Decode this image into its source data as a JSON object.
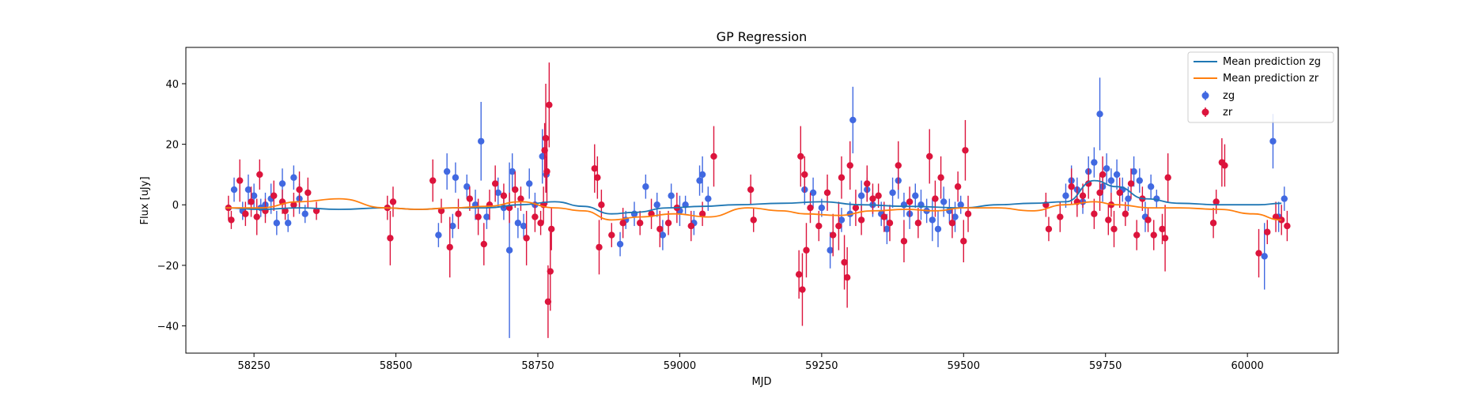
{
  "chart_data": {
    "type": "scatter",
    "title": "GP Regression",
    "xlabel": "MJD",
    "ylabel": "Flux [uJy]",
    "xlim": [
      58130,
      60160
    ],
    "ylim": [
      -49,
      52
    ],
    "xticks": [
      58250,
      58500,
      58750,
      59000,
      59250,
      59500,
      59750,
      60000
    ],
    "yticks": [
      -40,
      -20,
      0,
      20,
      40
    ],
    "grid": false,
    "legend_position": "top-right",
    "colors": {
      "mean_zg": "#1f77b4",
      "mean_zr": "#ff7f0e",
      "zg": "#4169e1",
      "zr": "#dc143c"
    },
    "series": [
      {
        "name": "Mean prediction zg",
        "kind": "line",
        "x": [
          58200,
          58260,
          58330,
          58400,
          58480,
          58540,
          58600,
          58660,
          58720,
          58780,
          58830,
          58880,
          58920,
          58980,
          59040,
          59100,
          59180,
          59250,
          59320,
          59400,
          59500,
          59560,
          59620,
          59680,
          59730,
          59770,
          59820,
          59880,
          59950,
          60020,
          60060
        ],
        "y": [
          -1,
          -1.5,
          -1,
          -1.5,
          -1,
          -1.5,
          -1,
          -1,
          0,
          1,
          -0.5,
          -3,
          -2.5,
          -1,
          -0.5,
          0,
          0.5,
          1,
          0,
          -0.5,
          -1,
          0,
          0.5,
          1,
          8,
          6,
          2,
          0.5,
          0,
          0,
          0.5
        ]
      },
      {
        "name": "Mean prediction zr",
        "kind": "line",
        "x": [
          58200,
          58260,
          58330,
          58400,
          58480,
          58540,
          58600,
          58660,
          58720,
          58780,
          58830,
          58880,
          58930,
          58990,
          59050,
          59120,
          59180,
          59220,
          59280,
          59340,
          59400,
          59450,
          59500,
          59560,
          59620,
          59680,
          59730,
          59770,
          59830,
          59880,
          59950,
          60010,
          60060
        ],
        "y": [
          -1,
          -1,
          1,
          2,
          -1,
          -1.5,
          -1,
          -0.5,
          1,
          -1,
          -2,
          -5,
          -4,
          -3,
          -4,
          -1,
          -2,
          -3,
          -3.5,
          -2,
          -1.5,
          -2,
          -1,
          -1,
          -2,
          0,
          1,
          0,
          -1,
          -1,
          -1.5,
          -3,
          -5
        ]
      },
      {
        "name": "zg",
        "kind": "errorbar",
        "points": [
          [
            58215,
            5,
            4
          ],
          [
            58230,
            -2,
            3
          ],
          [
            58240,
            5,
            5
          ],
          [
            58250,
            3,
            4
          ],
          [
            58262,
            -1,
            3
          ],
          [
            58270,
            0,
            4
          ],
          [
            58280,
            2,
            5
          ],
          [
            58290,
            -6,
            4
          ],
          [
            58300,
            7,
            5
          ],
          [
            58310,
            -6,
            3
          ],
          [
            58320,
            9,
            4
          ],
          [
            58330,
            2,
            5
          ],
          [
            58340,
            -3,
            3
          ],
          [
            58575,
            -10,
            4
          ],
          [
            58590,
            11,
            6
          ],
          [
            58600,
            -7,
            4
          ],
          [
            58605,
            9,
            5
          ],
          [
            58625,
            6,
            4
          ],
          [
            58640,
            0,
            5
          ],
          [
            58650,
            21,
            13
          ],
          [
            58660,
            -4,
            4
          ],
          [
            58680,
            4,
            5
          ],
          [
            58690,
            -1,
            4
          ],
          [
            58700,
            -15,
            29
          ],
          [
            58705,
            11,
            6
          ],
          [
            58715,
            -6,
            5
          ],
          [
            58725,
            -7,
            4
          ],
          [
            58735,
            7,
            5
          ],
          [
            58745,
            0,
            4
          ],
          [
            58758,
            16,
            9
          ],
          [
            58765,
            10,
            6
          ],
          [
            58895,
            -13,
            4
          ],
          [
            58905,
            -5,
            3
          ],
          [
            58920,
            -3,
            4
          ],
          [
            58940,
            6,
            4
          ],
          [
            58960,
            0,
            4
          ],
          [
            58970,
            -10,
            5
          ],
          [
            58985,
            3,
            4
          ],
          [
            59000,
            -2,
            5
          ],
          [
            59010,
            0,
            3
          ],
          [
            59025,
            -6,
            4
          ],
          [
            59035,
            8,
            5
          ],
          [
            59040,
            10,
            6
          ],
          [
            59050,
            2,
            4
          ],
          [
            59220,
            5,
            5
          ],
          [
            59235,
            4,
            5
          ],
          [
            59250,
            -1,
            3
          ],
          [
            59265,
            -15,
            6
          ],
          [
            59285,
            -5,
            4
          ],
          [
            59300,
            -3,
            4
          ],
          [
            59305,
            28,
            11
          ],
          [
            59320,
            3,
            5
          ],
          [
            59330,
            5,
            4
          ],
          [
            59340,
            0,
            4
          ],
          [
            59355,
            -3,
            4
          ],
          [
            59365,
            -8,
            5
          ],
          [
            59375,
            4,
            5
          ],
          [
            59385,
            8,
            6
          ],
          [
            59395,
            0,
            4
          ],
          [
            59405,
            -3,
            5
          ],
          [
            59415,
            3,
            4
          ],
          [
            59425,
            0,
            5
          ],
          [
            59435,
            -2,
            4
          ],
          [
            59445,
            -5,
            7
          ],
          [
            59455,
            -8,
            6
          ],
          [
            59465,
            1,
            5
          ],
          [
            59475,
            -2,
            4
          ],
          [
            59485,
            -4,
            5
          ],
          [
            59495,
            0,
            3
          ],
          [
            59680,
            3,
            4
          ],
          [
            59690,
            8,
            5
          ],
          [
            59700,
            5,
            4
          ],
          [
            59710,
            1,
            4
          ],
          [
            59720,
            11,
            5
          ],
          [
            59730,
            14,
            5
          ],
          [
            59740,
            30,
            12
          ],
          [
            59745,
            6,
            5
          ],
          [
            59752,
            12,
            5
          ],
          [
            59760,
            8,
            4
          ],
          [
            59770,
            10,
            5
          ],
          [
            59780,
            5,
            4
          ],
          [
            59790,
            2,
            4
          ],
          [
            59800,
            11,
            5
          ],
          [
            59810,
            8,
            4
          ],
          [
            59820,
            -4,
            5
          ],
          [
            59830,
            6,
            4
          ],
          [
            59840,
            2,
            3
          ],
          [
            60030,
            -17,
            11
          ],
          [
            60045,
            21,
            9
          ],
          [
            60055,
            -4,
            5
          ],
          [
            60065,
            2,
            4
          ]
        ]
      },
      {
        "name": "zr",
        "kind": "errorbar",
        "points": [
          [
            58205,
            -1,
            4
          ],
          [
            58210,
            -5,
            3
          ],
          [
            58225,
            8,
            7
          ],
          [
            58235,
            -3,
            4
          ],
          [
            58245,
            1,
            5
          ],
          [
            58255,
            -4,
            6
          ],
          [
            58260,
            10,
            5
          ],
          [
            58270,
            -2,
            4
          ],
          [
            58285,
            3,
            5
          ],
          [
            58300,
            1,
            4
          ],
          [
            58305,
            -2,
            3
          ],
          [
            58320,
            0,
            4
          ],
          [
            58330,
            5,
            6
          ],
          [
            58345,
            4,
            5
          ],
          [
            58360,
            -2,
            3
          ],
          [
            58485,
            -1,
            4
          ],
          [
            58490,
            -11,
            9
          ],
          [
            58495,
            1,
            5
          ],
          [
            58565,
            8,
            7
          ],
          [
            58580,
            -2,
            4
          ],
          [
            58595,
            -14,
            10
          ],
          [
            58610,
            -3,
            5
          ],
          [
            58630,
            2,
            4
          ],
          [
            58645,
            -4,
            6
          ],
          [
            58655,
            -13,
            7
          ],
          [
            58665,
            0,
            5
          ],
          [
            58675,
            7,
            6
          ],
          [
            58690,
            3,
            4
          ],
          [
            58700,
            -1,
            5
          ],
          [
            58710,
            5,
            6
          ],
          [
            58720,
            2,
            4
          ],
          [
            58730,
            -11,
            9
          ],
          [
            58745,
            -4,
            5
          ],
          [
            58755,
            -6,
            4
          ],
          [
            58760,
            0,
            6
          ],
          [
            58762,
            18,
            9
          ],
          [
            58764,
            22,
            18
          ],
          [
            58766,
            11,
            11
          ],
          [
            58768,
            -32,
            12
          ],
          [
            58770,
            33,
            14
          ],
          [
            58772,
            -22,
            13
          ],
          [
            58774,
            -8,
            7
          ],
          [
            58850,
            12,
            8
          ],
          [
            58855,
            9,
            7
          ],
          [
            58858,
            -14,
            9
          ],
          [
            58862,
            0,
            5
          ],
          [
            58880,
            -10,
            4
          ],
          [
            58900,
            -6,
            5
          ],
          [
            58930,
            -6,
            4
          ],
          [
            58950,
            -3,
            5
          ],
          [
            58965,
            -8,
            6
          ],
          [
            58980,
            -6,
            4
          ],
          [
            58995,
            -1,
            5
          ],
          [
            59020,
            -7,
            5
          ],
          [
            59040,
            -3,
            4
          ],
          [
            59060,
            16,
            10
          ],
          [
            59125,
            5,
            5
          ],
          [
            59130,
            -5,
            4
          ],
          [
            59210,
            -23,
            8
          ],
          [
            59213,
            16,
            10
          ],
          [
            59216,
            -28,
            12
          ],
          [
            59220,
            10,
            6
          ],
          [
            59223,
            -15,
            9
          ],
          [
            59230,
            -1,
            5
          ],
          [
            59245,
            -7,
            5
          ],
          [
            59260,
            4,
            6
          ],
          [
            59270,
            -10,
            7
          ],
          [
            59280,
            -7,
            8
          ],
          [
            59285,
            9,
            7
          ],
          [
            59290,
            -19,
            9
          ],
          [
            59295,
            -24,
            10
          ],
          [
            59300,
            13,
            8
          ],
          [
            59310,
            -1,
            6
          ],
          [
            59320,
            -5,
            5
          ],
          [
            59330,
            7,
            6
          ],
          [
            59340,
            2,
            5
          ],
          [
            59350,
            3,
            4
          ],
          [
            59360,
            -4,
            5
          ],
          [
            59370,
            -6,
            6
          ],
          [
            59385,
            13,
            8
          ],
          [
            59395,
            -12,
            7
          ],
          [
            59405,
            1,
            5
          ],
          [
            59420,
            -6,
            5
          ],
          [
            59440,
            16,
            9
          ],
          [
            59450,
            2,
            6
          ],
          [
            59460,
            9,
            7
          ],
          [
            59480,
            -6,
            5
          ],
          [
            59490,
            6,
            5
          ],
          [
            59500,
            -12,
            7
          ],
          [
            59503,
            18,
            10
          ],
          [
            59508,
            -3,
            6
          ],
          [
            59645,
            0,
            4
          ],
          [
            59650,
            -8,
            4
          ],
          [
            59670,
            -4,
            5
          ],
          [
            59690,
            6,
            6
          ],
          [
            59700,
            1,
            5
          ],
          [
            59710,
            3,
            4
          ],
          [
            59720,
            7,
            5
          ],
          [
            59730,
            -3,
            5
          ],
          [
            59740,
            4,
            6
          ],
          [
            59745,
            10,
            6
          ],
          [
            59755,
            -5,
            5
          ],
          [
            59760,
            0,
            4
          ],
          [
            59765,
            -8,
            6
          ],
          [
            59775,
            4,
            5
          ],
          [
            59785,
            -3,
            4
          ],
          [
            59795,
            7,
            5
          ],
          [
            59805,
            -10,
            5
          ],
          [
            59815,
            2,
            4
          ],
          [
            59825,
            -5,
            4
          ],
          [
            59835,
            -10,
            5
          ],
          [
            59850,
            -8,
            5
          ],
          [
            59855,
            -11,
            11
          ],
          [
            59860,
            9,
            8
          ],
          [
            59940,
            -6,
            5
          ],
          [
            59945,
            1,
            4
          ],
          [
            59955,
            14,
            8
          ],
          [
            59960,
            13,
            7
          ],
          [
            60020,
            -16,
            8
          ],
          [
            60035,
            -9,
            4
          ],
          [
            60050,
            -4,
            5
          ],
          [
            60060,
            -5,
            5
          ],
          [
            60070,
            -7,
            5
          ]
        ]
      }
    ]
  }
}
